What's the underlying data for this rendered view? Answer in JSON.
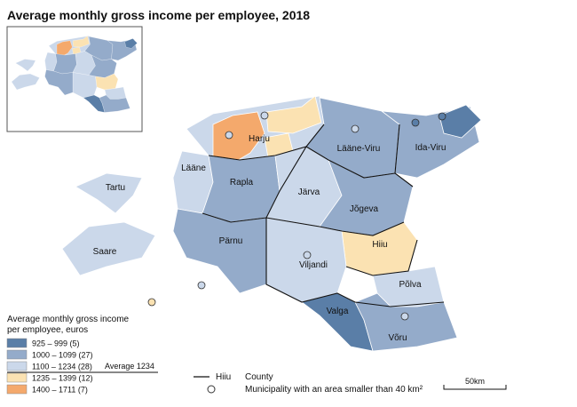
{
  "title": "Average monthly gross income per employee, 2018",
  "counties": [
    {
      "label": "Harju"
    },
    {
      "label": "Lääne-Viru"
    },
    {
      "label": "Ida-Viru"
    },
    {
      "label": "Lääne"
    },
    {
      "label": "Rapla"
    },
    {
      "label": "Järva"
    },
    {
      "label": "Jõgeva"
    },
    {
      "label": "Hiiu"
    },
    {
      "label": "Tartu"
    },
    {
      "label": "Saare"
    },
    {
      "label": "Pärnu"
    },
    {
      "label": "Viljandi"
    },
    {
      "label": "Põlva"
    },
    {
      "label": "Valga"
    },
    {
      "label": "Võru"
    }
  ],
  "legend": {
    "title": [
      "Average monthly gross income",
      "per employee, euros"
    ],
    "classes": [
      {
        "label": "925 –  999  (5)",
        "color": "#5a7ea7"
      },
      {
        "label": "1000 – 1099 (27)",
        "color": "#94abca"
      },
      {
        "label": "1100 – 1234 (28)",
        "color": "#cbd8ea"
      },
      {
        "label": "1235 – 1399 (12)",
        "color": "#fbe2b2"
      },
      {
        "label": "1400 – 1711  (7)",
        "color": "#f4a96c"
      }
    ],
    "average": "Average 1234",
    "county_sample": "Hiiu",
    "county": "County",
    "municipality": "Municipality with an area smaller than 40 km²",
    "scale": "50km"
  }
}
